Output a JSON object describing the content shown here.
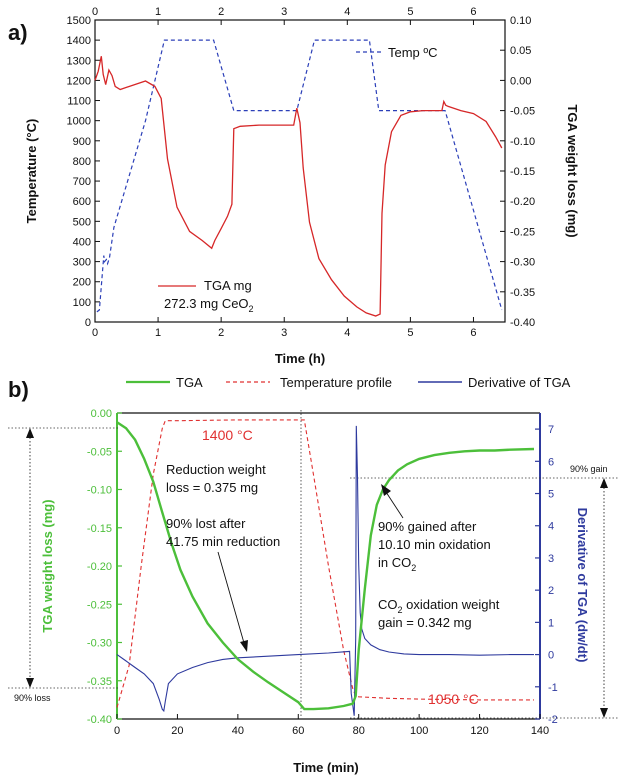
{
  "colors": {
    "tga_a": "#d62728",
    "temp_a": "#2b3fb8",
    "tga_b": "#4cbf3a",
    "temp_b": "#e03030",
    "deriv_b": "#2e3a9e",
    "axis": "#111111"
  },
  "chart_data": [
    {
      "panel": "a)",
      "type": "line",
      "xlabel": "Time (h)",
      "ylabel_left": "Temperature (°C)",
      "ylabel_right": "TGA weight loss (mg)",
      "xlim": [
        0,
        6.5
      ],
      "ylim_left": [
        0,
        1500
      ],
      "ylim_right": [
        -0.4,
        0.1
      ],
      "x_ticks": [
        "0",
        "1",
        "2",
        "3",
        "4",
        "5",
        "6"
      ],
      "y_left_ticks": [
        "0",
        "100",
        "200",
        "300",
        "400",
        "500",
        "600",
        "700",
        "800",
        "900",
        "1000",
        "1100",
        "1200",
        "1300",
        "1400",
        "1500"
      ],
      "y_right_ticks": [
        "-0.40",
        "-0.35",
        "-0.30",
        "-0.25",
        "-0.20",
        "-0.15",
        "-0.10",
        "-0.05",
        "0.00",
        "0.05",
        "0.10"
      ],
      "legend_temp": "Temp ºC",
      "legend_tga": "TGA mg",
      "legend_sample": "272.3 mg CeO",
      "legend_sample_sub": "2",
      "series": [
        {
          "name": "TGA mg",
          "axis": "right",
          "style": "solid",
          "x": [
            0.0,
            0.05,
            0.1,
            0.13,
            0.17,
            0.22,
            0.27,
            0.32,
            0.4,
            0.6,
            0.8,
            0.95,
            1.05,
            1.15,
            1.3,
            1.5,
            1.7,
            1.85,
            1.9,
            2.0,
            2.1,
            2.17,
            2.2,
            2.3,
            2.6,
            3.0,
            3.15,
            3.2,
            3.25,
            3.3,
            3.4,
            3.55,
            3.75,
            3.95,
            4.15,
            4.3,
            4.45,
            4.52,
            4.55,
            4.6,
            4.7,
            4.85,
            5.0,
            5.2,
            5.5,
            5.53,
            5.56,
            5.6,
            5.8,
            6.0,
            6.2,
            6.35,
            6.45
          ],
          "y": [
            0.0,
            0.015,
            0.04,
            0.01,
            -0.007,
            0.017,
            0.008,
            -0.01,
            -0.015,
            -0.008,
            -0.001,
            -0.01,
            -0.03,
            -0.13,
            -0.21,
            -0.25,
            -0.265,
            -0.278,
            -0.265,
            -0.245,
            -0.225,
            -0.205,
            -0.08,
            -0.076,
            -0.074,
            -0.074,
            -0.074,
            -0.046,
            -0.07,
            -0.145,
            -0.235,
            -0.295,
            -0.33,
            -0.357,
            -0.375,
            -0.385,
            -0.39,
            -0.387,
            -0.22,
            -0.14,
            -0.085,
            -0.058,
            -0.052,
            -0.05,
            -0.05,
            -0.035,
            -0.041,
            -0.043,
            -0.05,
            -0.055,
            -0.068,
            -0.093,
            -0.112
          ]
        },
        {
          "name": "Temp ºC",
          "axis": "left",
          "style": "dashed",
          "x": [
            0.03,
            0.07,
            0.14,
            0.15,
            0.18,
            0.2,
            0.23,
            0.3,
            0.8,
            1.1,
            1.6,
            1.88,
            2.2,
            2.27,
            2.5,
            3.05,
            3.2,
            3.48,
            3.98,
            4.35,
            4.5,
            4.55,
            5.0,
            5.55,
            6.45
          ],
          "y": [
            50,
            60,
            330,
            300,
            310,
            290,
            320,
            470,
            1000,
            1400,
            1400,
            1400,
            1050,
            1050,
            1050,
            1050,
            1050,
            1400,
            1400,
            1400,
            1050,
            1050,
            1050,
            1050,
            60
          ]
        }
      ]
    },
    {
      "panel": "b)",
      "type": "line",
      "xlabel": "Time (min)",
      "ylabel_left": "TGA weight loss (mg)",
      "ylabel_right": "Derivative of TGA (dw/dt)",
      "xlim": [
        0,
        140
      ],
      "ylim_left": [
        -0.4,
        0.0
      ],
      "ylim_right": [
        -2,
        7.5
      ],
      "x_ticks": [
        "0",
        "20",
        "40",
        "60",
        "80",
        "100",
        "120",
        "140"
      ],
      "y_left_ticks": [
        "-0.40",
        "-0.35",
        "-0.30",
        "-0.25",
        "-0.20",
        "-0.15",
        "-0.10",
        "-0.05",
        "0.00"
      ],
      "y_right_ticks": [
        "-2",
        "-1",
        "0",
        "1",
        "2",
        "3",
        "4",
        "5",
        "6",
        "7"
      ],
      "legend": [
        "TGA",
        "Temperature profile",
        "Derivative of TGA"
      ],
      "annotations": {
        "t_high": "1400 °C",
        "t_low": "1050 °C",
        "reduction_line1": "Reduction weight",
        "reduction_line2": "loss = 0.375 mg",
        "lost_line1": "90% lost after",
        "lost_line2": "41.75 min reduction",
        "gained_line1": "90% gained after",
        "gained_line2": "10.10 min oxidation",
        "gained_line3_pre": "in CO",
        "gained_line3_sub": "2",
        "co2_line1_pre": "CO",
        "co2_line1_sub": "2",
        "co2_line1_post": " oxidation weight",
        "co2_line2": "gain = 0.342 mg",
        "gain_label": "90% gain",
        "loss_label": "90% loss"
      },
      "series": [
        {
          "name": "TGA",
          "axis": "left",
          "style": "solid",
          "x": [
            0,
            3,
            6,
            9,
            12,
            15,
            18,
            21,
            25,
            30,
            35,
            40,
            45,
            50,
            55,
            60,
            62,
            65,
            70,
            75,
            78,
            79,
            80,
            82,
            84,
            86,
            88,
            90,
            93,
            96,
            100,
            105,
            110,
            115,
            120,
            125,
            130,
            138
          ],
          "y": [
            -0.012,
            -0.02,
            -0.035,
            -0.06,
            -0.09,
            -0.13,
            -0.17,
            -0.205,
            -0.24,
            -0.275,
            -0.3,
            -0.322,
            -0.338,
            -0.352,
            -0.365,
            -0.378,
            -0.387,
            -0.387,
            -0.386,
            -0.383,
            -0.38,
            -0.37,
            -0.31,
            -0.23,
            -0.16,
            -0.12,
            -0.1,
            -0.088,
            -0.075,
            -0.067,
            -0.06,
            -0.055,
            -0.052,
            -0.05,
            -0.049,
            -0.049,
            -0.048,
            -0.047
          ]
        },
        {
          "name": "Temperature profile",
          "axis": "left",
          "style": "dashed",
          "x": [
            0,
            4,
            8,
            12,
            15,
            16,
            20,
            40,
            60,
            62,
            65,
            70,
            75,
            78,
            79,
            80,
            85,
            90,
            100,
            120,
            138
          ],
          "y": [
            -0.385,
            -0.33,
            -0.2,
            -0.08,
            -0.02,
            -0.01,
            -0.01,
            -0.009,
            -0.009,
            -0.009,
            -0.08,
            -0.2,
            -0.31,
            -0.36,
            -0.37,
            -0.371,
            -0.372,
            -0.373,
            -0.374,
            -0.375,
            -0.375
          ]
        },
        {
          "name": "Derivative of TGA",
          "axis": "right",
          "style": "solid",
          "x": [
            0,
            3,
            6,
            9,
            12,
            14,
            15,
            15.5,
            16,
            17,
            20,
            25,
            30,
            35,
            40,
            50,
            60,
            70,
            77,
            77.5,
            78.5,
            79,
            79.2,
            79.6,
            80,
            80.5,
            81,
            82,
            84,
            87,
            90,
            95,
            100,
            110,
            120,
            130,
            138
          ],
          "y": [
            0.0,
            -0.2,
            -0.4,
            -0.6,
            -0.9,
            -1.4,
            -1.7,
            -1.75,
            -1.45,
            -0.9,
            -0.6,
            -0.4,
            -0.25,
            -0.15,
            -0.1,
            -0.05,
            0.0,
            0.05,
            0.1,
            -1.2,
            -1.9,
            0.5,
            7.1,
            5.5,
            2.8,
            1.3,
            0.8,
            0.5,
            0.3,
            0.15,
            0.08,
            0.02,
            0.0,
            0.0,
            -0.02,
            0.0,
            0.0
          ]
        }
      ]
    }
  ]
}
